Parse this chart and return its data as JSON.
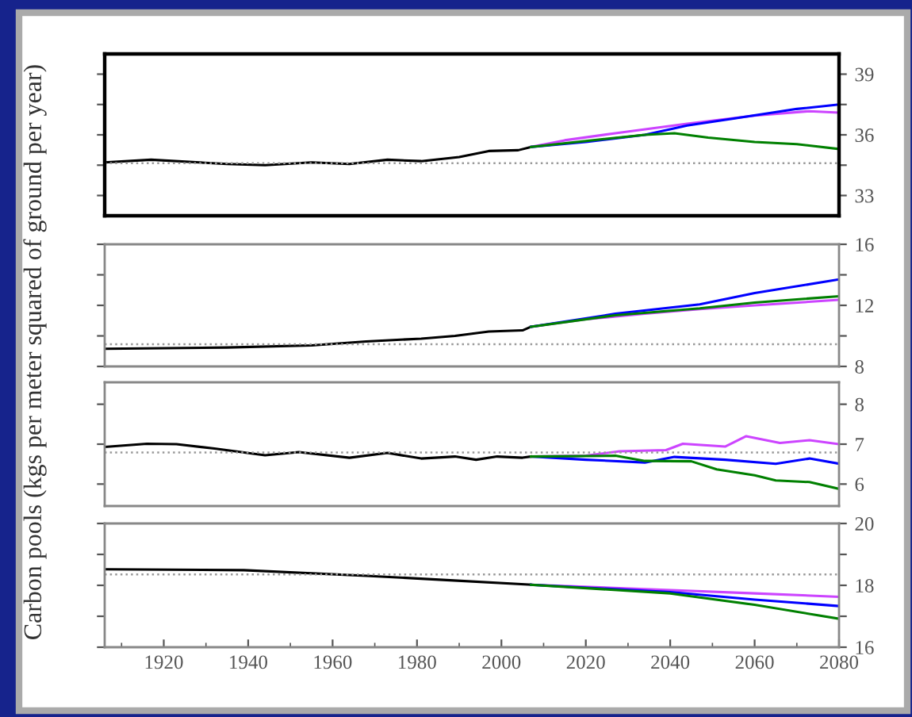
{
  "chart_data": [
    {
      "type": "line",
      "ylabel": "Carbon pools (kgs per meter squared of ground per year)",
      "xlim": [
        1906,
        2080
      ],
      "ylim": [
        32,
        40
      ],
      "yticks": [
        33,
        {
          "value": 34.5,
          "label": null
        },
        36,
        {
          "value": 37.5,
          "label": null
        },
        39
      ],
      "tick_labels": "y",
      "grid": false,
      "legend": false,
      "line_style": "solid",
      "marker": "none",
      "ref_lines": [
        {
          "axis": "y",
          "value": 34.6,
          "color": "#999999",
          "line_style": "dotted"
        }
      ],
      "series": [
        {
          "color": "#000000",
          "x": [
            1906,
            1917,
            1935,
            1944,
            1955,
            1964,
            1973,
            1981,
            1990,
            1997,
            2004,
            2007
          ],
          "values": [
            34.64,
            34.77,
            34.56,
            34.5,
            34.64,
            34.56,
            34.77,
            34.7,
            34.9,
            35.2,
            35.24,
            35.4
          ]
        },
        {
          "color": "#cc44ff",
          "x": [
            2007,
            2015,
            2027,
            2044,
            2060,
            2073,
            2080
          ],
          "values": [
            35.4,
            35.73,
            36.08,
            36.55,
            36.95,
            37.17,
            37.1
          ]
        },
        {
          "color": "#0000ff",
          "x": [
            2007,
            2020,
            2034,
            2044,
            2055,
            2070,
            2080
          ],
          "values": [
            35.4,
            35.65,
            36.0,
            36.46,
            36.8,
            37.28,
            37.5
          ]
        },
        {
          "color": "#008000",
          "x": [
            2007,
            2020,
            2034,
            2041,
            2049,
            2060,
            2070,
            2080
          ],
          "values": [
            35.4,
            35.7,
            36.0,
            36.08,
            35.86,
            35.65,
            35.54,
            35.3
          ]
        }
      ]
    },
    {
      "type": "line",
      "xlim": [
        1906,
        2080
      ],
      "ylim": [
        8,
        16
      ],
      "yticks": [
        8,
        {
          "value": 10,
          "label": null
        },
        12,
        {
          "value": 14,
          "label": null
        },
        16
      ],
      "tick_labels": "y",
      "grid": false,
      "legend": false,
      "line_style": "solid",
      "marker": "none",
      "ref_lines": [
        {
          "axis": "y",
          "value": 9.45,
          "color": "#999999",
          "line_style": "dotted"
        }
      ],
      "series": [
        {
          "color": "#000000",
          "x": [
            1906,
            1935,
            1955,
            1968,
            1981,
            1989,
            1997,
            2005,
            2007
          ],
          "values": [
            9.16,
            9.24,
            9.38,
            9.64,
            9.82,
            10.0,
            10.29,
            10.36,
            10.6
          ]
        },
        {
          "color": "#cc44ff",
          "x": [
            2007,
            2020,
            2034,
            2047,
            2060,
            2080
          ],
          "values": [
            10.6,
            11.09,
            11.45,
            11.75,
            12.0,
            12.36
          ]
        },
        {
          "color": "#0000ff",
          "x": [
            2007,
            2027,
            2047,
            2060,
            2080
          ],
          "values": [
            10.6,
            11.45,
            12.07,
            12.8,
            13.7
          ]
        },
        {
          "color": "#008000",
          "x": [
            2007,
            2027,
            2047,
            2060,
            2080
          ],
          "values": [
            10.6,
            11.35,
            11.8,
            12.18,
            12.6
          ]
        }
      ]
    },
    {
      "type": "line",
      "xlim": [
        1906,
        2080
      ],
      "ylim": [
        5.45,
        8.55
      ],
      "yticks": [
        6,
        7,
        8
      ],
      "tick_labels": "y",
      "grid": false,
      "legend": false,
      "line_style": "solid",
      "marker": "none",
      "ref_lines": [
        {
          "axis": "y",
          "value": 6.79,
          "color": "#999999",
          "line_style": "dotted"
        }
      ],
      "series": [
        {
          "color": "#000000",
          "x": [
            1906,
            1916,
            1923,
            1932,
            1944,
            1952,
            1964,
            1973,
            1981,
            1989,
            1994,
            1999,
            2005,
            2007
          ],
          "values": [
            6.93,
            7.01,
            7.0,
            6.89,
            6.72,
            6.8,
            6.66,
            6.78,
            6.64,
            6.69,
            6.61,
            6.69,
            6.66,
            6.69
          ]
        },
        {
          "color": "#cc44ff",
          "x": [
            2007,
            2020,
            2028,
            2039,
            2043,
            2053,
            2058,
            2066,
            2073,
            2080
          ],
          "values": [
            6.69,
            6.71,
            6.82,
            6.85,
            7.01,
            6.94,
            7.2,
            7.03,
            7.1,
            7.0
          ]
        },
        {
          "color": "#0000ff",
          "x": [
            2007,
            2020,
            2034,
            2041,
            2053,
            2065,
            2073,
            2080
          ],
          "values": [
            6.69,
            6.61,
            6.54,
            6.68,
            6.61,
            6.51,
            6.64,
            6.51
          ]
        },
        {
          "color": "#008000",
          "x": [
            2007,
            2027,
            2034,
            2045,
            2051,
            2060,
            2065,
            2073,
            2080
          ],
          "values": [
            6.69,
            6.71,
            6.58,
            6.57,
            6.37,
            6.22,
            6.09,
            6.05,
            5.88
          ]
        }
      ]
    },
    {
      "type": "line",
      "xlim": [
        1906,
        2080
      ],
      "ylim": [
        16,
        20
      ],
      "yticks": [
        16,
        {
          "value": 17,
          "label": null
        },
        18,
        {
          "value": 19,
          "label": null
        },
        20
      ],
      "xticks": [
        1920,
        1940,
        1960,
        1980,
        2000,
        2020,
        2040,
        2060,
        2080
      ],
      "grid": false,
      "legend": false,
      "line_style": "solid",
      "marker": "none",
      "ref_lines": [
        {
          "axis": "y",
          "value": 18.35,
          "color": "#999999",
          "line_style": "dotted"
        }
      ],
      "series": [
        {
          "color": "#000000",
          "x": [
            1906,
            1939,
            1968,
            1987,
            2007
          ],
          "values": [
            18.52,
            18.49,
            18.31,
            18.17,
            18.02
          ]
        },
        {
          "color": "#cc44ff",
          "x": [
            2007,
            2034,
            2060,
            2080
          ],
          "values": [
            18.02,
            17.88,
            17.74,
            17.63
          ]
        },
        {
          "color": "#0000ff",
          "x": [
            2007,
            2040,
            2060,
            2080
          ],
          "values": [
            18.02,
            17.78,
            17.54,
            17.33
          ]
        },
        {
          "color": "#008000",
          "x": [
            2007,
            2040,
            2060,
            2080
          ],
          "values": [
            18.02,
            17.74,
            17.37,
            16.92
          ]
        }
      ]
    }
  ]
}
